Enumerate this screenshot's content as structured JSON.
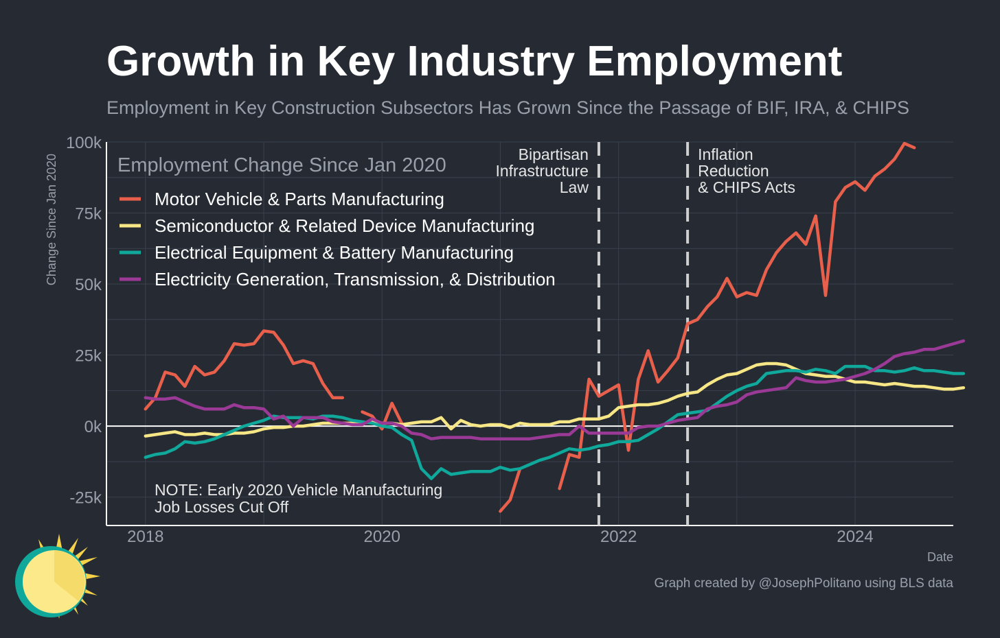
{
  "title": "Growth in Key Industry Employment",
  "subtitle": "Employment in Key Construction Subsectors Has Grown Since the Passage of BIF, IRA, & CHIPS",
  "credit": "Graph created by @JosephPolitano using BLS data",
  "colors": {
    "background": "#252a33",
    "grid": "#3b414c",
    "zero_line": "#ffffff",
    "text_muted": "#9aa0aa",
    "text": "#e6e6e6"
  },
  "chart_data": {
    "type": "line",
    "title": "Growth in Key Industry Employment",
    "subtitle": "Employment in Key Construction Subsectors Has Grown Since the Passage of BIF, IRA, & CHIPS",
    "xlabel": "Date",
    "ylabel": "Change Since Jan 2020",
    "xlim": [
      2017.67,
      2024.83
    ],
    "ylim": [
      -35000,
      100000
    ],
    "x_ticks": [
      {
        "value": 2018,
        "label": "2018"
      },
      {
        "value": 2020,
        "label": "2020"
      },
      {
        "value": 2022,
        "label": "2022"
      },
      {
        "value": 2024,
        "label": "2024"
      }
    ],
    "y_ticks": [
      {
        "value": -25000,
        "label": "-25k"
      },
      {
        "value": 0,
        "label": "0k"
      },
      {
        "value": 25000,
        "label": "25k"
      },
      {
        "value": 50000,
        "label": "50k"
      },
      {
        "value": 75000,
        "label": "75k"
      },
      {
        "value": 100000,
        "label": "100k"
      }
    ],
    "grid": true,
    "legend": {
      "title": "Employment Change Since Jan 2020",
      "placement": "top-left"
    },
    "series": [
      {
        "name": "Motor Vehicle & Parts Manufacturing",
        "color": "#e8604c",
        "segments": [
          {
            "start": "2018-01",
            "values": [
              6000,
              10000,
              19000,
              18000,
              14000,
              21000,
              18000,
              19000,
              23000,
              29000,
              28500,
              29000,
              33500,
              33000,
              28500,
              22000,
              23000,
              22000,
              15000,
              10000,
              10000
            ]
          },
          {
            "start": "2019-11",
            "values": [
              5000,
              3500,
              -1000,
              8000,
              1000
            ]
          },
          {
            "start": "2021-01",
            "values": [
              -30000,
              -26000,
              -15000
            ]
          },
          {
            "start": "2021-07",
            "values": [
              -22000,
              -10000,
              -11000,
              16500,
              10500,
              12500,
              14500,
              -8500,
              16500,
              26500,
              15500,
              19500,
              24000,
              36000,
              37500,
              42000,
              45500,
              52000,
              45500,
              47000,
              46000,
              55000,
              61000,
              65000,
              68000,
              64000,
              74000,
              46000,
              79000,
              84000,
              86000,
              83000,
              88000,
              90500,
              94000,
              99500,
              98000
            ]
          }
        ]
      },
      {
        "name": "Semiconductor & Related Device Manufacturing",
        "color": "#f7e685",
        "segments": [
          {
            "start": "2018-01",
            "values": [
              -3500,
              -3000,
              -2500,
              -2000,
              -3000,
              -3000,
              -2500,
              -3000,
              -3000,
              -2500,
              -2500,
              -2000,
              -1000,
              -500,
              -500,
              0,
              0,
              500,
              1000,
              1000,
              1000,
              1000,
              1000,
              1500,
              1000,
              1000,
              500,
              1000,
              1500,
              1500,
              3000,
              -1000,
              2000,
              500,
              0,
              500,
              500,
              -500,
              1000,
              500,
              500,
              500,
              1500,
              1500,
              2500,
              2500,
              2500,
              3500,
              6500,
              7000,
              7500,
              7500,
              8000,
              9000,
              10500,
              11500,
              12000,
              14500,
              16500,
              18000,
              18500,
              20000,
              21500,
              22000,
              22000,
              21500,
              20000,
              18500,
              18000,
              17500,
              17500,
              16500,
              15500,
              15500,
              15000,
              14500,
              15000,
              14500,
              14000,
              14000,
              13500,
              13000,
              13000,
              13500
            ]
          }
        ]
      },
      {
        "name": "Electrical Equipment & Battery Manufacturing",
        "color": "#0fa89b",
        "segments": [
          {
            "start": "2018-01",
            "values": [
              -11000,
              -10000,
              -9500,
              -8000,
              -5500,
              -6000,
              -5500,
              -4500,
              -3000,
              -1500,
              0,
              1000,
              2000,
              3500,
              3000,
              3000,
              3000,
              2500,
              3500,
              3500,
              3000,
              2000,
              1500,
              1000,
              0,
              -500,
              -3000,
              -5000,
              -15000,
              -18500,
              -15000,
              -17000,
              -16500,
              -16000,
              -16000,
              -16000,
              -14500,
              -15500,
              -15000,
              -13500,
              -12000,
              -11000,
              -9500,
              -8000,
              -8500,
              -8000,
              -7000,
              -6500,
              -5500,
              -5500,
              -5000,
              -3000,
              -1000,
              1500,
              4000,
              4500,
              5000,
              5500,
              8000,
              10500,
              12500,
              14000,
              15000,
              18500,
              19000,
              19500,
              19500,
              19000,
              20000,
              19500,
              18500,
              21000,
              21000,
              21000,
              19500,
              19500,
              19000,
              19500,
              20500,
              19500,
              19500,
              19000,
              18500,
              18500
            ]
          }
        ]
      },
      {
        "name": "Electricity Generation, Transmission, & Distribution",
        "color": "#9b3a96",
        "segments": [
          {
            "start": "2018-01",
            "values": [
              10000,
              9500,
              9500,
              10000,
              8500,
              7000,
              6000,
              6000,
              6000,
              7500,
              6500,
              6500,
              6000,
              2500,
              3500,
              0,
              3000,
              3000,
              3000,
              1500,
              1000,
              500,
              500,
              2500,
              1000,
              1000,
              0,
              -2500,
              -3000,
              -4500,
              -4000,
              -4000,
              -4000,
              -4000,
              -4500,
              -4500,
              -4500,
              -4500,
              -4500,
              -4500,
              -4000,
              -3500,
              -3000,
              -3000,
              0,
              -2500,
              -2500,
              -2500,
              -2500,
              -2500,
              -500,
              0,
              0,
              1000,
              2000,
              2500,
              3000,
              6000,
              7000,
              7500,
              8500,
              11000,
              12000,
              12500,
              13000,
              13500,
              17000,
              16000,
              15500,
              15500,
              16000,
              16500,
              17500,
              18500,
              20000,
              22000,
              24500,
              25500,
              26000,
              27000,
              27000,
              28000,
              29000,
              30000
            ]
          }
        ]
      }
    ],
    "annotations": {
      "events": [
        {
          "date": "2021-11",
          "lines": [
            "Bipartisan",
            "Infrastructure",
            "Law"
          ],
          "anchor": "left"
        },
        {
          "date": "2022-08",
          "lines": [
            "Inflation",
            "Reduction",
            "& CHIPS Acts"
          ],
          "anchor": "right"
        }
      ],
      "note": [
        "NOTE: Early 2020 Vehicle Manufacturing",
        "Job Losses Cut Off"
      ]
    }
  }
}
